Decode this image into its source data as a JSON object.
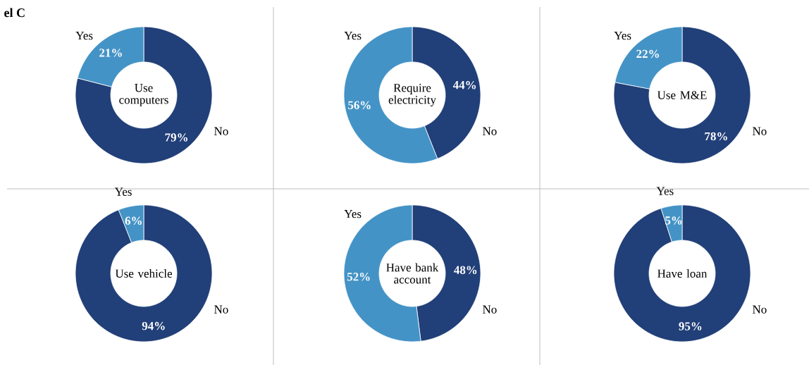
{
  "chart_data": [
    {
      "type": "donut",
      "title": "Use computers",
      "annotations": [
        "el C"
      ],
      "categories": [
        "No",
        "Yes"
      ],
      "values": [
        79,
        21
      ],
      "colors": [
        "#213f78",
        "#4493c6"
      ],
      "value_labels": [
        "79%",
        "21%"
      ]
    },
    {
      "type": "donut",
      "title": "Require electricity",
      "categories": [
        "No",
        "Yes"
      ],
      "values": [
        44,
        56
      ],
      "colors": [
        "#213f78",
        "#4493c6"
      ],
      "value_labels": [
        "44%",
        "56%"
      ]
    },
    {
      "type": "donut",
      "title": "Use M&E",
      "categories": [
        "No",
        "Yes"
      ],
      "values": [
        78,
        22
      ],
      "colors": [
        "#213f78",
        "#4493c6"
      ],
      "value_labels": [
        "78%",
        "22%"
      ]
    },
    {
      "type": "donut",
      "title": "Use vehicle",
      "categories": [
        "No",
        "Yes"
      ],
      "values": [
        94,
        6
      ],
      "colors": [
        "#213f78",
        "#4493c6"
      ],
      "value_labels": [
        "94%",
        "6%"
      ]
    },
    {
      "type": "donut",
      "title": "Have bank account",
      "categories": [
        "No",
        "Yes"
      ],
      "values": [
        48,
        52
      ],
      "colors": [
        "#213f78",
        "#4493c6"
      ],
      "value_labels": [
        "48%",
        "52%"
      ]
    },
    {
      "type": "donut",
      "title": "Have loan",
      "categories": [
        "No",
        "Yes"
      ],
      "values": [
        95,
        5
      ],
      "colors": [
        "#213f78",
        "#4493c6"
      ],
      "value_labels": [
        "95%",
        "5%"
      ]
    }
  ]
}
